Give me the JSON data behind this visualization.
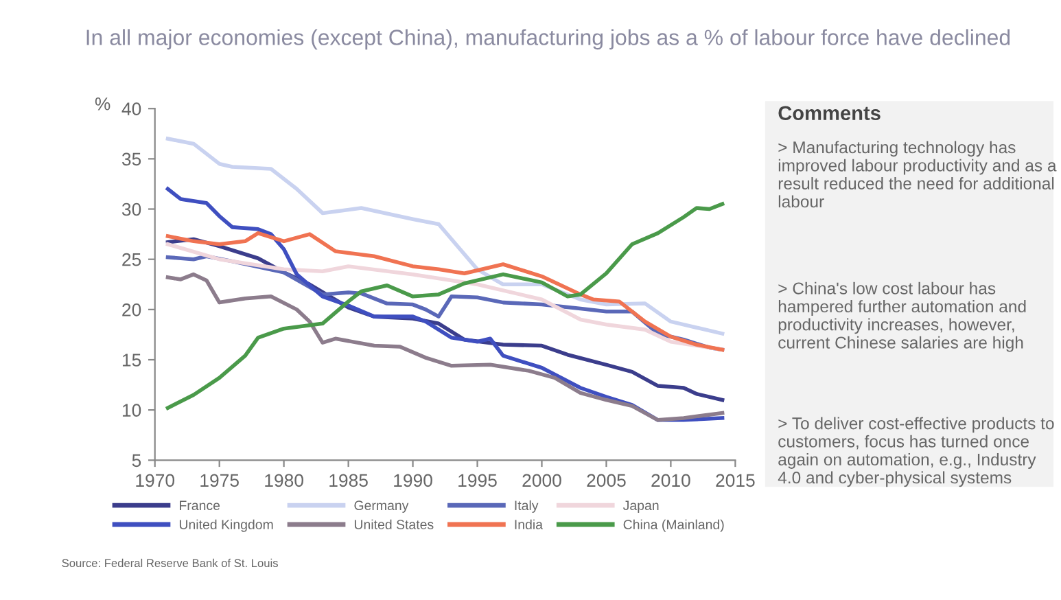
{
  "chart_data": {
    "type": "line",
    "title": "In all major economies (except China), manufacturing jobs as a % of labour force have declined",
    "ylabel": "%",
    "xlim": [
      1970,
      2015
    ],
    "xticks": [
      1970,
      1975,
      1980,
      1985,
      1990,
      1995,
      2000,
      2005,
      2010,
      2015
    ],
    "ylim": [
      5,
      40
    ],
    "yticks": [
      5,
      10,
      15,
      20,
      25,
      30,
      35,
      40
    ],
    "grid": false,
    "legend": "bottom",
    "marker": "none",
    "line_style": "solid",
    "series": [
      {
        "name": "France",
        "color": "#3b3d8c",
        "x": [
          1971,
          1973,
          1975,
          1978,
          1980,
          1982,
          1985,
          1987,
          1990,
          1992,
          1994,
          1997,
          2000,
          2002,
          2005,
          2007,
          2009,
          2011,
          2012,
          2014
        ],
        "values": [
          26.7,
          27,
          26.3,
          25.1,
          23.7,
          22.5,
          20.2,
          19.3,
          19.1,
          18.6,
          17.0,
          16.5,
          16.4,
          15.5,
          14.5,
          13.8,
          12.4,
          12.2,
          11.6,
          11.0
        ]
      },
      {
        "name": "Germany",
        "color": "#c9d2f0",
        "x": [
          1971,
          1973,
          1975,
          1976,
          1979,
          1981,
          1983,
          1986,
          1990,
          1992,
          1995,
          1997,
          2000,
          2003,
          2005,
          2008,
          2010,
          2012,
          2014
        ],
        "values": [
          37,
          36.5,
          34.5,
          34.2,
          34,
          32,
          29.6,
          30.1,
          29,
          28.5,
          24,
          22.5,
          22.5,
          21,
          20.5,
          20.6,
          18.8,
          18.2,
          17.6
        ]
      },
      {
        "name": "Italy",
        "color": "#5a68b8",
        "x": [
          1971,
          1973,
          1974,
          1976,
          1980,
          1983,
          1985,
          1986,
          1988,
          1990,
          1991,
          1992,
          1993,
          1995,
          1997,
          2000,
          2003,
          2005,
          2007,
          2009,
          2011,
          2013,
          2014
        ],
        "values": [
          25.2,
          25,
          25.3,
          24.8,
          23.7,
          21.5,
          21.7,
          21.6,
          20.6,
          20.5,
          20.0,
          19.3,
          21.3,
          21.2,
          20.7,
          20.5,
          20.1,
          19.8,
          19.8,
          17.6,
          17.0,
          16.2,
          16.0
        ]
      },
      {
        "name": "Japan",
        "color": "#f0d6dc",
        "x": [
          1971,
          1975,
          1980,
          1983,
          1985,
          1990,
          1995,
          2000,
          2003,
          2005,
          2008,
          2010,
          2014
        ],
        "values": [
          26.5,
          25,
          24,
          23.8,
          24.3,
          23.5,
          22.5,
          21,
          19,
          18.5,
          18,
          16.8,
          16
        ]
      },
      {
        "name": "United Kingdom",
        "color": "#3f4fc0",
        "x": [
          1971,
          1972,
          1974,
          1975,
          1976,
          1978,
          1979,
          1980,
          1981,
          1983,
          1985,
          1987,
          1990,
          1991,
          1993,
          1995,
          1996,
          1997,
          2000,
          2003,
          2005,
          2007,
          2009,
          2011,
          2014
        ],
        "values": [
          32,
          31,
          30.6,
          29.3,
          28.2,
          28.0,
          27.5,
          26,
          23.5,
          21.3,
          20.4,
          19.3,
          19.3,
          18.8,
          17.2,
          16.8,
          17.1,
          15.4,
          14.2,
          12.2,
          11.3,
          10.5,
          9.0,
          9.0,
          9.2
        ]
      },
      {
        "name": "United States",
        "color": "#8c7c8c",
        "x": [
          1971,
          1972,
          1973,
          1974,
          1975,
          1977,
          1979,
          1981,
          1982,
          1983,
          1984,
          1987,
          1989,
          1991,
          1993,
          1996,
          1999,
          2001,
          2003,
          2005,
          2007,
          2009,
          2011,
          2014
        ],
        "values": [
          23.2,
          23.0,
          23.5,
          22.9,
          20.7,
          21.1,
          21.3,
          20.0,
          18.8,
          16.7,
          17.1,
          16.4,
          16.3,
          15.2,
          14.4,
          14.5,
          13.9,
          13.2,
          11.7,
          11.0,
          10.4,
          9.0,
          9.2,
          9.7
        ]
      },
      {
        "name": "India",
        "color": "#f07352",
        "x": [
          1971,
          1973,
          1975,
          1977,
          1978,
          1980,
          1982,
          1984,
          1987,
          1990,
          1992,
          1994,
          1997,
          2000,
          2003,
          2004,
          2006,
          2008,
          2010,
          2012,
          2014
        ],
        "values": [
          27.3,
          26.8,
          26.5,
          26.8,
          27.6,
          26.8,
          27.5,
          25.8,
          25.3,
          24.3,
          24.0,
          23.6,
          24.5,
          23.3,
          21.5,
          21,
          20.8,
          18.8,
          17.3,
          16.5,
          16
        ]
      },
      {
        "name": "China (Mainland)",
        "color": "#4a9a4a",
        "x": [
          1971,
          1973,
          1975,
          1977,
          1978,
          1980,
          1983,
          1985,
          1986,
          1988,
          1990,
          1992,
          1994,
          1997,
          2000,
          2002,
          2003,
          2005,
          2007,
          2009,
          2011,
          2012,
          2013,
          2014
        ],
        "values": [
          10.2,
          11.5,
          13.2,
          15.4,
          17.2,
          18.1,
          18.6,
          20.8,
          21.8,
          22.4,
          21.3,
          21.5,
          22.6,
          23.5,
          22.7,
          21.3,
          21.5,
          23.6,
          26.5,
          27.6,
          29.2,
          30.1,
          30.0,
          30.5
        ]
      }
    ],
    "annotations": [
      "Comments",
      "> Manufacturing technology has improved labour productivity and as a result reduced the need for additional labour",
      "> China's low cost labour has hampered further automation and productivity increases, however, current Chinese salaries are high",
      "> To deliver cost-effective products to customers, focus has turned once again on automation, e.g., Industry 4.0 and cyber-physical systems",
      "Source: Federal Reserve Bank of St. Louis"
    ]
  }
}
